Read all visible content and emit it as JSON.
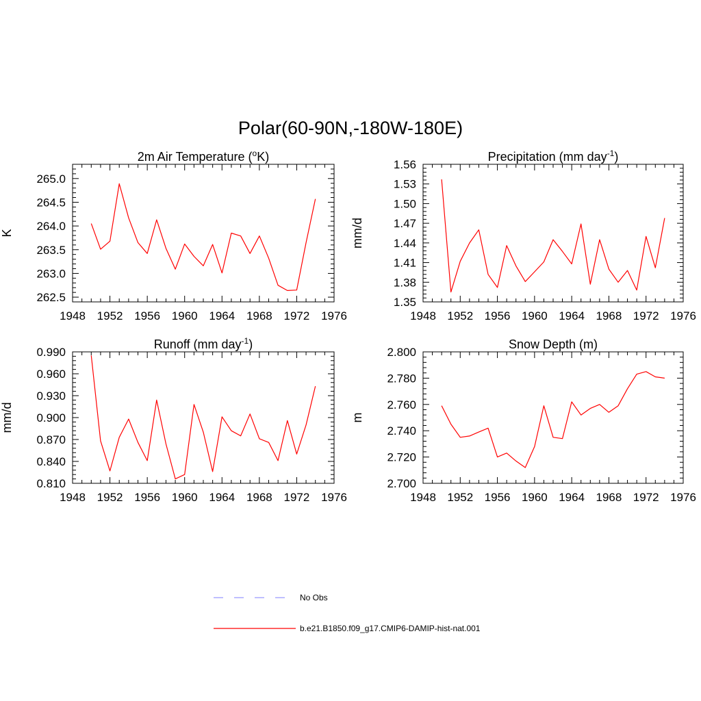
{
  "figure": {
    "title": "Polar(60-90N,-180W-180E)"
  },
  "legend": {
    "items": [
      {
        "label": "No Obs",
        "color": "#9999ff",
        "dash": true
      },
      {
        "label": "b.e21.B1850.f09_g17.CMIP6-DAMIP-hist-nat.001",
        "color": "#ff0000",
        "dash": false
      }
    ]
  },
  "chart_data": [
    {
      "type": "line",
      "title": "2m Air Temperature (",
      "title_sup": "o",
      "title_tail": "K)",
      "ylabel": "K",
      "xlim": [
        1948,
        1976
      ],
      "xticks": [
        "1948",
        "1952",
        "1956",
        "1960",
        "1964",
        "1968",
        "1972",
        "1976"
      ],
      "ylim": [
        262.4,
        265.3
      ],
      "yticks": [
        "262.5",
        "263.0",
        "263.5",
        "264.0",
        "264.5",
        "265.0"
      ],
      "ytick_values": [
        262.5,
        263.0,
        263.5,
        264.0,
        264.5,
        265.0
      ],
      "color": "#ff0000",
      "x": [
        1950,
        1951,
        1952,
        1953,
        1954,
        1955,
        1956,
        1957,
        1958,
        1959,
        1960,
        1961,
        1962,
        1963,
        1964,
        1965,
        1966,
        1967,
        1968,
        1969,
        1970,
        1971,
        1972,
        1973,
        1974
      ],
      "y": [
        264.05,
        263.51,
        263.68,
        264.89,
        264.17,
        263.65,
        263.42,
        264.13,
        263.53,
        263.09,
        263.62,
        263.36,
        263.16,
        263.61,
        263.01,
        263.85,
        263.79,
        263.42,
        263.79,
        263.32,
        262.75,
        262.64,
        262.65,
        263.65,
        264.57
      ]
    },
    {
      "type": "line",
      "title": "Precipitation (mm day",
      "title_sup": "-1",
      "title_tail": ")",
      "ylabel": "mm/d",
      "xlim": [
        1948,
        1976
      ],
      "xticks": [
        "1948",
        "1952",
        "1956",
        "1960",
        "1964",
        "1968",
        "1972",
        "1976"
      ],
      "ylim": [
        1.35,
        1.56
      ],
      "yticks": [
        "1.35",
        "1.38",
        "1.41",
        "1.44",
        "1.47",
        "1.50",
        "1.53",
        "1.56"
      ],
      "ytick_values": [
        1.35,
        1.38,
        1.41,
        1.44,
        1.47,
        1.5,
        1.53,
        1.56
      ],
      "color": "#ff0000",
      "x": [
        1950,
        1951,
        1952,
        1953,
        1954,
        1955,
        1956,
        1957,
        1958,
        1959,
        1960,
        1961,
        1962,
        1963,
        1964,
        1965,
        1966,
        1967,
        1968,
        1969,
        1970,
        1971,
        1972,
        1973,
        1974
      ],
      "y": [
        1.537,
        1.365,
        1.412,
        1.44,
        1.46,
        1.392,
        1.372,
        1.436,
        1.405,
        1.381,
        1.396,
        1.411,
        1.445,
        1.427,
        1.408,
        1.469,
        1.377,
        1.445,
        1.4,
        1.38,
        1.398,
        1.368,
        1.45,
        1.402,
        1.478
      ]
    },
    {
      "type": "line",
      "title": "Runoff (mm day",
      "title_sup": "-1",
      "title_tail": ")",
      "ylabel": "mm/d",
      "xlim": [
        1948,
        1976
      ],
      "xticks": [
        "1948",
        "1952",
        "1956",
        "1960",
        "1964",
        "1968",
        "1972",
        "1976"
      ],
      "ylim": [
        0.81,
        0.99
      ],
      "yticks": [
        "0.810",
        "0.840",
        "0.870",
        "0.900",
        "0.930",
        "0.960",
        "0.990"
      ],
      "ytick_values": [
        0.81,
        0.84,
        0.87,
        0.9,
        0.93,
        0.96,
        0.99
      ],
      "color": "#ff0000",
      "x": [
        1950,
        1951,
        1952,
        1953,
        1954,
        1955,
        1956,
        1957,
        1958,
        1959,
        1960,
        1961,
        1962,
        1963,
        1964,
        1965,
        1966,
        1967,
        1968,
        1969,
        1970,
        1971,
        1972,
        1973,
        1974
      ],
      "y": [
        0.985,
        0.868,
        0.827,
        0.873,
        0.898,
        0.866,
        0.841,
        0.924,
        0.864,
        0.816,
        0.822,
        0.918,
        0.88,
        0.826,
        0.901,
        0.882,
        0.875,
        0.905,
        0.871,
        0.866,
        0.841,
        0.896,
        0.85,
        0.89,
        0.943
      ]
    },
    {
      "type": "line",
      "title": "Snow Depth (m)",
      "title_sup": "",
      "title_tail": "",
      "ylabel": "m",
      "xlim": [
        1948,
        1976
      ],
      "xticks": [
        "1948",
        "1952",
        "1956",
        "1960",
        "1964",
        "1968",
        "1972",
        "1976"
      ],
      "ylim": [
        2.7,
        2.8
      ],
      "yticks": [
        "2.700",
        "2.720",
        "2.740",
        "2.760",
        "2.780",
        "2.800"
      ],
      "ytick_values": [
        2.7,
        2.72,
        2.74,
        2.76,
        2.78,
        2.8
      ],
      "color": "#ff0000",
      "x": [
        1950,
        1951,
        1952,
        1953,
        1954,
        1955,
        1956,
        1957,
        1958,
        1959,
        1960,
        1961,
        1962,
        1963,
        1964,
        1965,
        1966,
        1967,
        1968,
        1969,
        1970,
        1971,
        1972,
        1973,
        1974
      ],
      "y": [
        2.759,
        2.745,
        2.735,
        2.736,
        2.739,
        2.742,
        2.72,
        2.723,
        2.717,
        2.712,
        2.728,
        2.759,
        2.735,
        2.734,
        2.762,
        2.752,
        2.757,
        2.76,
        2.754,
        2.759,
        2.772,
        2.783,
        2.785,
        2.781,
        2.78
      ]
    }
  ]
}
